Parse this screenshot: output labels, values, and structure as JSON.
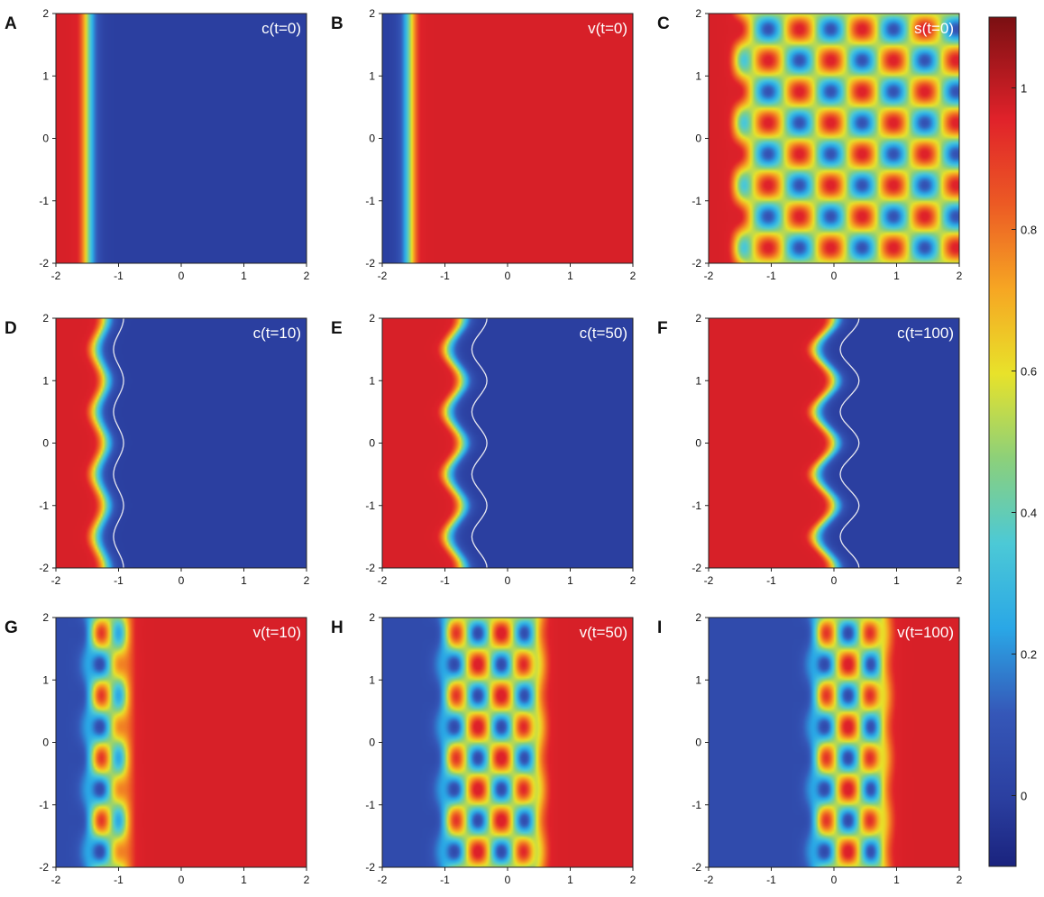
{
  "chart_data": {
    "type": "heatmap",
    "colormap": "jet",
    "xlim": [
      -2,
      2
    ],
    "ylim": [
      -2,
      2
    ],
    "xticks": [
      -2,
      -1,
      0,
      1,
      2
    ],
    "yticks": [
      -2,
      -1,
      0,
      1,
      2
    ],
    "panels": [
      {
        "label": "A",
        "title": "c(t=0)",
        "field": "front",
        "front_x": -1.5,
        "left_value": 1.0,
        "right_value": 0.0,
        "contour_x": null,
        "wave_amp": 0.0
      },
      {
        "label": "B",
        "title": "v(t=0)",
        "field": "front",
        "front_x": -1.55,
        "left_value": 0.0,
        "right_value": 1.0,
        "contour_x": null,
        "wave_amp": 0.0
      },
      {
        "label": "C",
        "title": "s(t=0)",
        "field": "checker",
        "front_x": -1.55,
        "left_value": 1.0,
        "right_value": null,
        "contour_x": null,
        "wave_amp": 0.0
      },
      {
        "label": "D",
        "title": "c(t=10)",
        "field": "front",
        "front_x": -1.3,
        "left_value": 1.0,
        "right_value": 0.0,
        "contour_x": -1.0,
        "wave_amp": 0.08
      },
      {
        "label": "E",
        "title": "c(t=50)",
        "field": "front",
        "front_x": -0.85,
        "left_value": 1.0,
        "right_value": 0.0,
        "contour_x": -0.45,
        "wave_amp": 0.12
      },
      {
        "label": "F",
        "title": "c(t=100)",
        "field": "front",
        "front_x": -0.15,
        "left_value": 1.0,
        "right_value": 0.0,
        "contour_x": 0.25,
        "wave_amp": 0.15
      },
      {
        "label": "G",
        "title": "v(t=10)",
        "field": "band",
        "front_x": -1.3,
        "left_value": 0.05,
        "right_value": 1.0,
        "contour_x": null,
        "band_width": 0.35
      },
      {
        "label": "H",
        "title": "v(t=50)",
        "field": "band",
        "front_x": -0.85,
        "left_value": 0.05,
        "right_value": 1.0,
        "contour_x": null,
        "band_width": 1.3
      },
      {
        "label": "I",
        "title": "v(t=100)",
        "field": "band",
        "front_x": -0.15,
        "left_value": 0.05,
        "right_value": 1.0,
        "contour_x": null,
        "band_width": 0.9
      }
    ],
    "colorbar": {
      "range": [
        -0.1,
        1.1
      ],
      "ticks": [
        0,
        0.2,
        0.4,
        0.6,
        0.8,
        1
      ],
      "tick_labels": [
        "0",
        "0.2",
        "0.4",
        "0.6",
        "0.8",
        "1"
      ]
    }
  }
}
